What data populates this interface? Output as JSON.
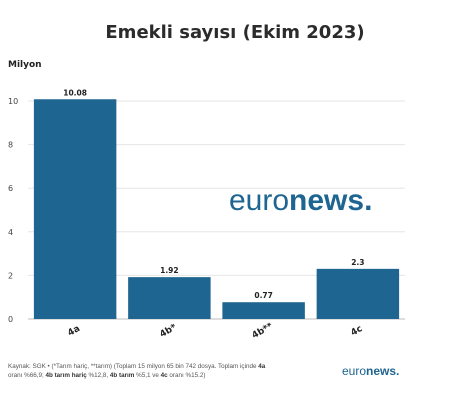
{
  "chart_data": {
    "type": "bar",
    "title": "Emekli sayısı (Ekim 2023)",
    "ylabel": "Milyon",
    "categories": [
      "4a",
      "4b*",
      "4b**",
      "4c"
    ],
    "values": [
      10.08,
      1.92,
      0.77,
      2.3
    ],
    "value_labels": [
      "10.08",
      "1.92",
      "0.77",
      "2.3"
    ],
    "ylim": [
      0,
      10
    ],
    "yticks": [
      0,
      2,
      4,
      6,
      8,
      10
    ],
    "grid": true,
    "bar_color": "#1f6591"
  },
  "footer": {
    "line1_a": "Kaynak: SGK • (*Tarım hariç, **tarım) (Toplam 15 milyon 65 bin 742 dosya. Toplam içinde ",
    "line1_b": "4a",
    "line2_a": "oranı %66,9; ",
    "line2_b": "4b tarım hariç",
    "line2_c": " %12,8, ",
    "line2_d": "4b tarım",
    "line2_e": " %5,1 ve ",
    "line2_f": "4c",
    "line2_g": " oranı %15.2)"
  },
  "logo": {
    "part1": "euro",
    "part2": "news."
  }
}
